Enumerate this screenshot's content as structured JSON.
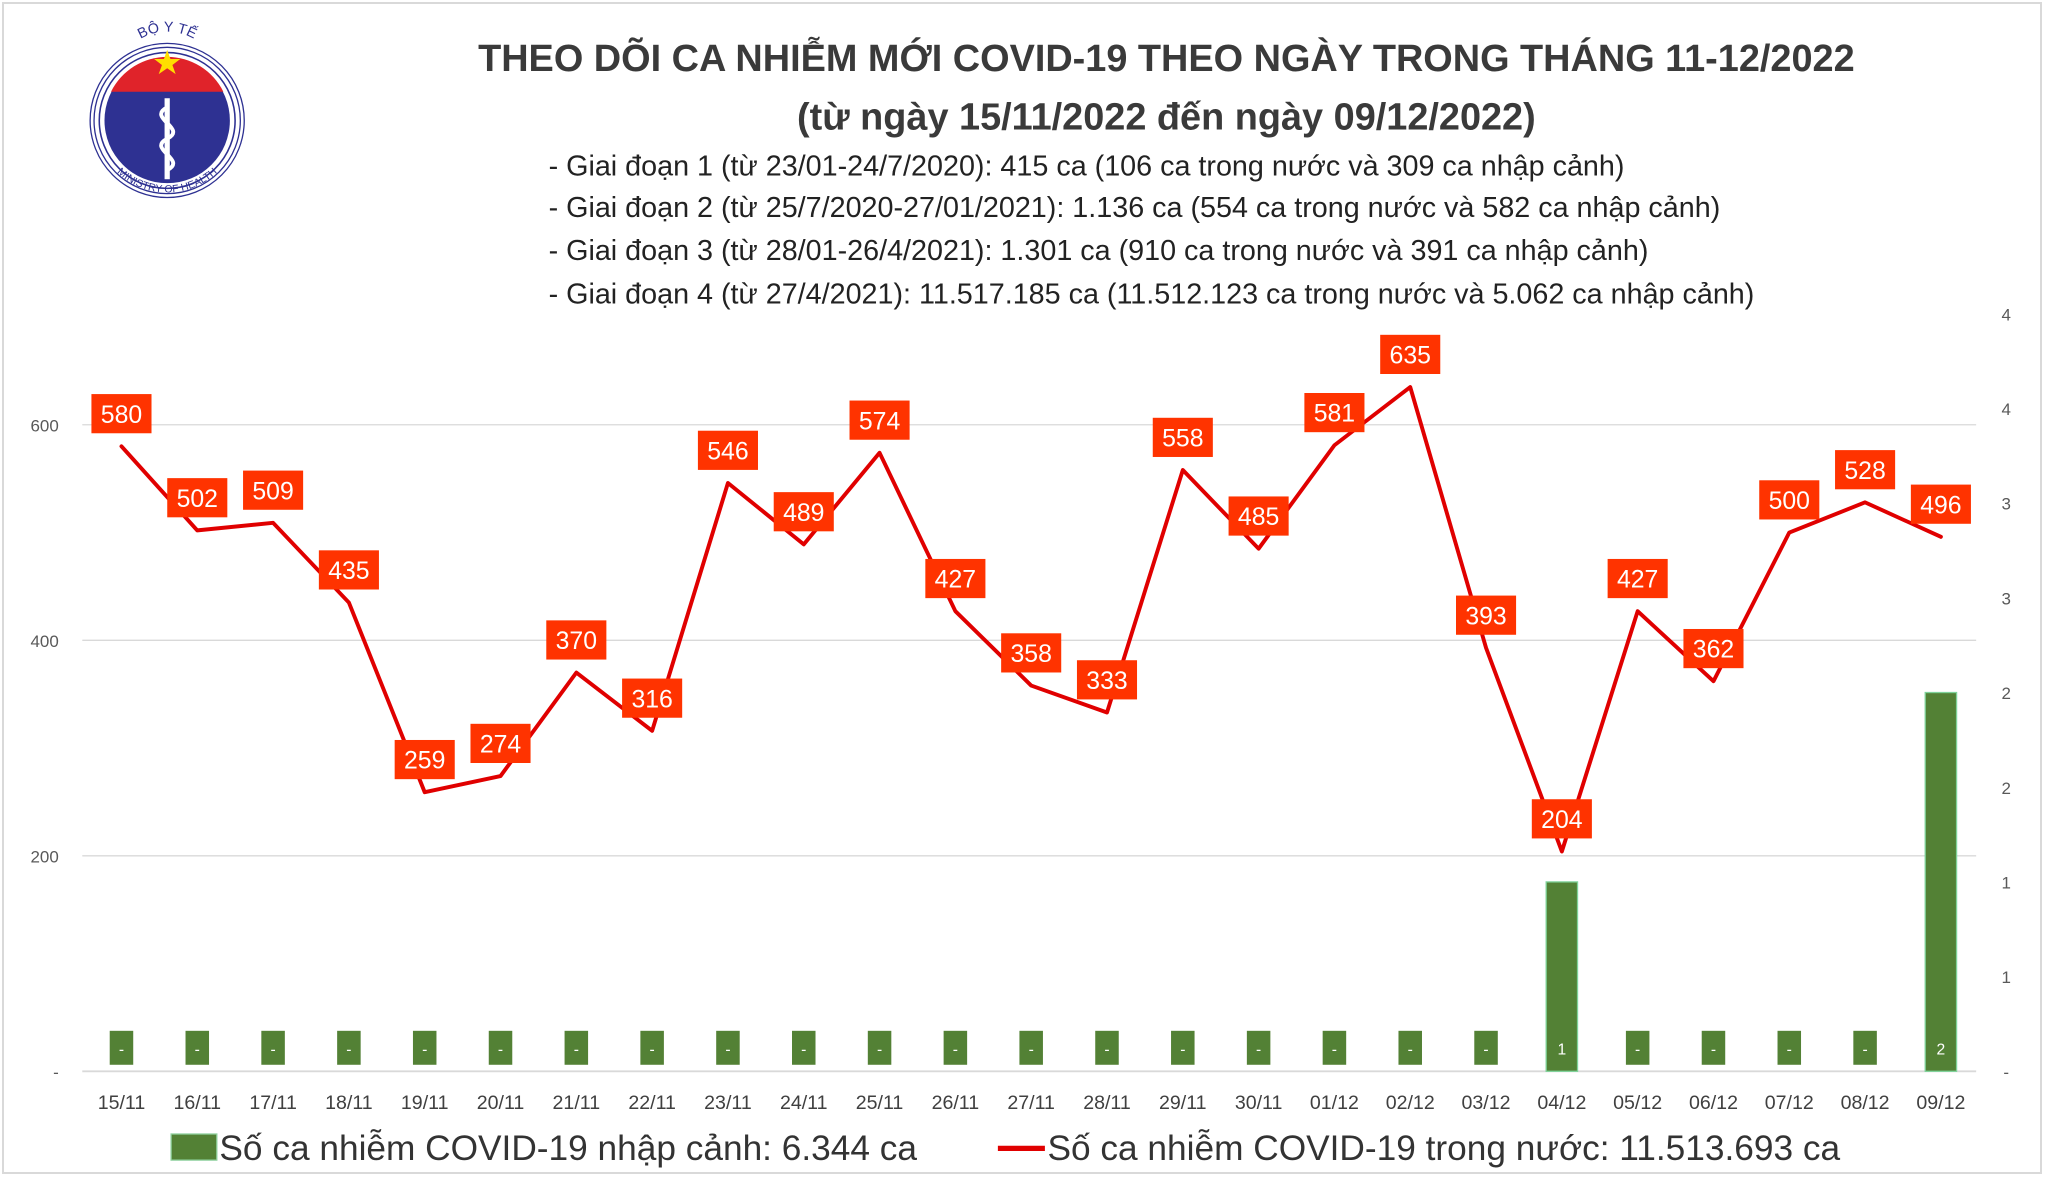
{
  "header": {
    "title": "THEO DÕI CA NHIỄM MỚI COVID-19 THEO NGÀY TRONG THÁNG 11-12/2022",
    "subtitle": "(từ ngày 15/11/2022 đến ngày 09/12/2022)",
    "notes": [
      "- Giai đoạn 1 (từ 23/01-24/7/2020): 415 ca (106 ca trong nước và 309 ca nhập cảnh)",
      "- Giai đoạn 2 (từ 25/7/2020-27/01/2021): 1.136 ca (554 ca trong nước và 582 ca nhập cảnh)",
      "- Giai đoạn 3 (từ 28/01-26/4/2021): 1.301 ca (910 ca trong nước và 391 ca nhập cảnh)",
      "- Giai đoạn 4 (từ 27/4/2021): 11.517.185 ca (11.512.123 ca trong nước và 5.062 ca nhập cảnh)"
    ]
  },
  "logo": {
    "top_text": "BỘ Y TẾ",
    "bottom_text": "MINISTRY OF HEALTH"
  },
  "chart_data": {
    "type": "bar+line",
    "categories": [
      "15/11",
      "16/11",
      "17/11",
      "18/11",
      "19/11",
      "20/11",
      "21/11",
      "22/11",
      "23/11",
      "24/11",
      "25/11",
      "26/11",
      "27/11",
      "28/11",
      "29/11",
      "30/11",
      "01/12",
      "02/12",
      "03/12",
      "04/12",
      "05/12",
      "06/12",
      "07/12",
      "08/12",
      "09/12"
    ],
    "series": [
      {
        "name": "Số ca nhiễm COVID-19 nhập cảnh: 6.344 ca",
        "type": "bar",
        "axis": "right",
        "color": "#538135",
        "values": [
          0,
          0,
          0,
          0,
          0,
          0,
          0,
          0,
          0,
          0,
          0,
          0,
          0,
          0,
          0,
          0,
          0,
          0,
          0,
          1,
          0,
          0,
          0,
          0,
          2
        ],
        "labels": [
          "-",
          "-",
          "-",
          "-",
          "-",
          "-",
          "-",
          "-",
          "-",
          "-",
          "-",
          "-",
          "-",
          "-",
          "-",
          "-",
          "-",
          "-",
          "-",
          "1",
          "-",
          "-",
          "-",
          "-",
          "2"
        ]
      },
      {
        "name": "Số ca nhiễm COVID-19 trong nước: 11.513.693 ca",
        "type": "line",
        "axis": "left",
        "color": "#e00000",
        "label_color": "#ff3300",
        "values": [
          580,
          502,
          509,
          435,
          259,
          274,
          370,
          316,
          546,
          489,
          574,
          427,
          358,
          333,
          558,
          485,
          581,
          635,
          393,
          204,
          427,
          362,
          500,
          528,
          496
        ]
      }
    ],
    "left_axis": {
      "range": [
        0,
        700
      ],
      "ticks": [
        "-",
        "200",
        "400",
        "600"
      ]
    },
    "right_axis": {
      "range": [
        0,
        4
      ],
      "ticks": [
        "-",
        "1",
        "1",
        "2",
        "2",
        "3",
        "3",
        "4",
        "4"
      ]
    },
    "grid": true,
    "legend_placement": "bottom"
  }
}
